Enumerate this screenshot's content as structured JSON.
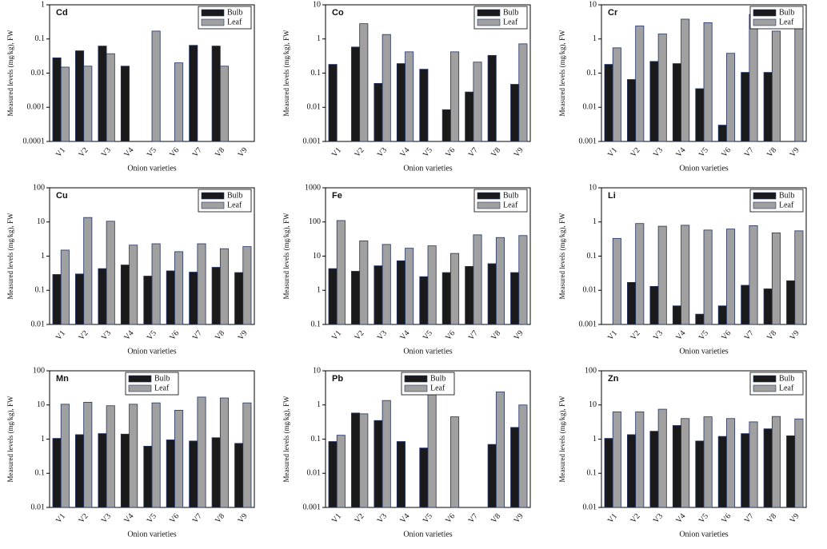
{
  "chart_data": [
    {
      "type": "bar",
      "title": "Cd",
      "x_label": "Onion varieties",
      "y_label": "Measured levels (mg/kg), FW",
      "log_y": true,
      "legend": "upper right",
      "categories": [
        "V1",
        "V2",
        "V3",
        "V4",
        "V5",
        "V6",
        "V7",
        "V8",
        "V9"
      ],
      "ylim": [
        0.0001,
        1
      ],
      "yticks": [
        0.0001,
        0.001,
        0.01,
        0.1,
        1
      ],
      "series": [
        {
          "name": "Bulb",
          "color": "#1a1a1a",
          "values": [
            0.028,
            0.045,
            0.062,
            0.016,
            null,
            null,
            0.065,
            0.062,
            null
          ]
        },
        {
          "name": "Leaf",
          "color": "#a0a0a0",
          "values": [
            0.015,
            0.016,
            0.037,
            null,
            0.17,
            0.02,
            null,
            0.016,
            null
          ]
        }
      ]
    },
    {
      "type": "bar",
      "title": "Co",
      "x_label": "Onion varieties",
      "y_label": "Measured levels (mg/kg), FW",
      "log_y": true,
      "legend": "upper right",
      "categories": [
        "V1",
        "V2",
        "V3",
        "V4",
        "V5",
        "V6",
        "V7",
        "V8",
        "V9"
      ],
      "ylim": [
        0.001,
        10
      ],
      "yticks": [
        0.001,
        0.01,
        0.1,
        1,
        10
      ],
      "series": [
        {
          "name": "Bulb",
          "color": "#1a1a1a",
          "values": [
            0.18,
            0.58,
            0.05,
            0.19,
            0.13,
            0.0085,
            0.028,
            0.33,
            0.047
          ]
        },
        {
          "name": "Leaf",
          "color": "#a0a0a0",
          "values": [
            null,
            2.8,
            1.35,
            0.42,
            null,
            0.42,
            0.21,
            null,
            0.72
          ]
        }
      ]
    },
    {
      "type": "bar",
      "title": "Cr",
      "x_label": "Onion varieties",
      "y_label": "Measured levels (mg/kg), FW",
      "log_y": true,
      "legend": "upper right",
      "categories": [
        "V1",
        "V2",
        "V3",
        "V4",
        "V5",
        "V6",
        "V7",
        "V8",
        "V9"
      ],
      "ylim": [
        0.001,
        10
      ],
      "yticks": [
        0.001,
        0.01,
        0.1,
        1,
        10
      ],
      "series": [
        {
          "name": "Bulb",
          "color": "#1a1a1a",
          "values": [
            0.18,
            0.065,
            0.22,
            0.19,
            0.035,
            0.003,
            0.105,
            0.105,
            null
          ]
        },
        {
          "name": "Leaf",
          "color": "#a0a0a0",
          "values": [
            0.55,
            2.4,
            1.4,
            3.8,
            3.0,
            0.38,
            5.2,
            1.7,
            3.3
          ]
        }
      ]
    },
    {
      "type": "bar",
      "title": "Cu",
      "x_label": "Onion varieties",
      "y_label": "Measured levels (mg/kg), FW",
      "log_y": true,
      "legend": "upper right",
      "categories": [
        "V1",
        "V2",
        "V3",
        "V4",
        "V5",
        "V6",
        "V7",
        "V8",
        "V9"
      ],
      "ylim": [
        0.01,
        100
      ],
      "yticks": [
        0.01,
        0.1,
        1,
        10,
        100
      ],
      "series": [
        {
          "name": "Bulb",
          "color": "#1a1a1a",
          "values": [
            0.29,
            0.3,
            0.43,
            0.55,
            0.26,
            0.37,
            0.34,
            0.47,
            0.33
          ]
        },
        {
          "name": "Leaf",
          "color": "#a0a0a0",
          "values": [
            1.5,
            13.5,
            10.5,
            2.1,
            2.3,
            1.35,
            2.3,
            1.65,
            1.9
          ]
        }
      ]
    },
    {
      "type": "bar",
      "title": "Fe",
      "x_label": "Onion varieties",
      "y_label": "Measured levels (mg/kg), FW",
      "log_y": true,
      "legend": "upper right",
      "categories": [
        "V1",
        "V2",
        "V3",
        "V4",
        "V5",
        "V6",
        "V7",
        "V8",
        "V9"
      ],
      "ylim": [
        0.1,
        1000
      ],
      "yticks": [
        0.1,
        1,
        10,
        100,
        1000
      ],
      "series": [
        {
          "name": "Bulb",
          "color": "#1a1a1a",
          "values": [
            4.3,
            3.6,
            5.2,
            7.3,
            2.5,
            3.3,
            5.0,
            6.0,
            3.3
          ]
        },
        {
          "name": "Leaf",
          "color": "#a0a0a0",
          "values": [
            110,
            28,
            22,
            17,
            20,
            12,
            42,
            35,
            40
          ]
        }
      ]
    },
    {
      "type": "bar",
      "title": "Li",
      "x_label": "Onion varieties",
      "y_label": "Measured levels (mg/kg), FW",
      "log_y": true,
      "legend": "upper right",
      "categories": [
        "V1",
        "V2",
        "V3",
        "V4",
        "V5",
        "V6",
        "V7",
        "V8",
        "V9"
      ],
      "ylim": [
        0.001,
        10
      ],
      "yticks": [
        0.001,
        0.01,
        0.1,
        1,
        10
      ],
      "series": [
        {
          "name": "Bulb",
          "color": "#1a1a1a",
          "values": [
            null,
            0.017,
            0.013,
            0.0035,
            0.002,
            0.0035,
            0.014,
            0.011,
            0.019
          ]
        },
        {
          "name": "Leaf",
          "color": "#a0a0a0",
          "values": [
            0.33,
            0.9,
            0.75,
            0.8,
            0.58,
            0.62,
            0.78,
            0.48,
            0.55
          ]
        }
      ]
    },
    {
      "type": "bar",
      "title": "Mn",
      "x_label": "Onion varieties",
      "y_label": "Measured levels (mg/kg), FW",
      "log_y": true,
      "legend": "upper center",
      "categories": [
        "V1",
        "V2",
        "V3",
        "V4",
        "V5",
        "V6",
        "V7",
        "V8",
        "V9"
      ],
      "ylim": [
        0.01,
        100
      ],
      "yticks": [
        0.01,
        0.1,
        1,
        10,
        100
      ],
      "series": [
        {
          "name": "Bulb",
          "color": "#1a1a1a",
          "values": [
            1.05,
            1.35,
            1.45,
            1.4,
            0.62,
            0.95,
            0.88,
            1.1,
            0.75
          ]
        },
        {
          "name": "Leaf",
          "color": "#a0a0a0",
          "values": [
            10.5,
            12,
            9.5,
            10.5,
            11.5,
            7.0,
            17,
            16,
            11.5
          ]
        }
      ]
    },
    {
      "type": "bar",
      "title": "Pb",
      "x_label": "Onion varieties",
      "y_label": "Measured levels (mg/kg), FW",
      "log_y": true,
      "legend": "upper center",
      "categories": [
        "V1",
        "V2",
        "V3",
        "V4",
        "V5",
        "V6",
        "V7",
        "V8",
        "V9"
      ],
      "ylim": [
        0.001,
        10
      ],
      "yticks": [
        0.001,
        0.01,
        0.1,
        1,
        10
      ],
      "series": [
        {
          "name": "Bulb",
          "color": "#1a1a1a",
          "values": [
            0.085,
            0.58,
            0.35,
            0.085,
            0.055,
            null,
            null,
            0.07,
            0.22
          ]
        },
        {
          "name": "Leaf",
          "color": "#a0a0a0",
          "values": [
            0.13,
            0.55,
            1.35,
            null,
            2.1,
            0.45,
            null,
            2.4,
            1.0
          ]
        }
      ]
    },
    {
      "type": "bar",
      "title": "Zn",
      "x_label": "Onion varieties",
      "y_label": "Measured levels (mg/kg), FW",
      "log_y": true,
      "legend": "upper right",
      "categories": [
        "V1",
        "V2",
        "V3",
        "V4",
        "V5",
        "V6",
        "V7",
        "V8",
        "V9"
      ],
      "ylim": [
        0.01,
        100
      ],
      "yticks": [
        0.01,
        0.1,
        1,
        10,
        100
      ],
      "series": [
        {
          "name": "Bulb",
          "color": "#1a1a1a",
          "values": [
            1.05,
            1.35,
            1.7,
            2.5,
            0.88,
            1.2,
            1.45,
            2.0,
            1.25
          ]
        },
        {
          "name": "Leaf",
          "color": "#a0a0a0",
          "values": [
            6.3,
            6.3,
            7.5,
            4.0,
            4.5,
            4.0,
            3.2,
            4.6,
            3.9
          ]
        }
      ]
    }
  ]
}
